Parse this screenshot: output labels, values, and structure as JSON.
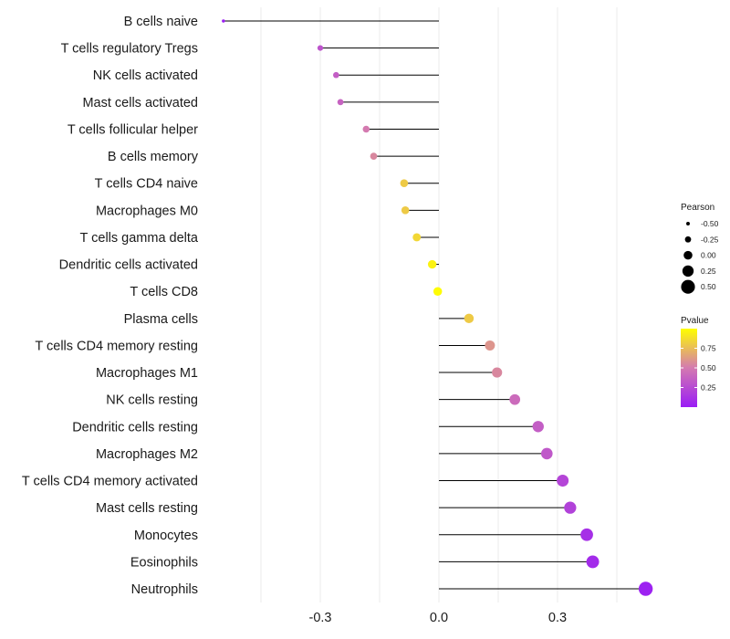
{
  "chart_data": {
    "type": "lollipop",
    "title": "",
    "xlabel": "",
    "ylabel": "",
    "xlim": [
      -0.6,
      0.55
    ],
    "x_ticks": [
      -0.3,
      0.0,
      0.3
    ],
    "x_tick_labels": [
      "-0.3",
      "0.0",
      "0.3"
    ],
    "grid": true,
    "categories": [
      "B cells naive",
      "T cells regulatory  Tregs",
      "NK cells activated",
      "Mast cells activated",
      "T cells follicular helper",
      "B cells memory",
      "T cells CD4 naive",
      "Macrophages M0",
      "T cells gamma delta",
      "Dendritic cells activated",
      "T cells CD8",
      "Plasma cells",
      "T cells CD4 memory resting",
      "Macrophages M1",
      "NK cells resting",
      "Dendritic cells resting",
      "Macrophages M2",
      "T cells CD4 memory activated",
      "Mast cells resting",
      "Monocytes",
      "Eosinophils",
      "Neutrophils"
    ],
    "pearson": [
      -0.545,
      -0.3,
      -0.26,
      -0.249,
      -0.184,
      -0.165,
      -0.088,
      -0.085,
      -0.056,
      -0.017,
      -0.003,
      0.076,
      0.129,
      0.147,
      0.192,
      0.251,
      0.273,
      0.313,
      0.332,
      0.374,
      0.389,
      0.523
    ],
    "pvalue": [
      0.01,
      0.3,
      0.35,
      0.38,
      0.5,
      0.55,
      0.8,
      0.8,
      0.85,
      0.95,
      0.99,
      0.8,
      0.6,
      0.55,
      0.42,
      0.35,
      0.32,
      0.22,
      0.2,
      0.1,
      0.08,
      0.03
    ],
    "legend": {
      "size_title": "Pearson",
      "size_labels": [
        "-0.50",
        "-0.25",
        "0.00",
        "0.25",
        "0.50"
      ],
      "size_values": [
        -0.5,
        -0.25,
        0.0,
        0.25,
        0.5
      ],
      "color_title": "Pvalue",
      "color_labels": [
        "0.75",
        "0.50",
        "0.25"
      ],
      "color_values": [
        0.75,
        0.5,
        0.25
      ],
      "color_range": [
        0.0,
        1.0
      ],
      "placement": "right"
    },
    "colors": {
      "low": "#9A1CF5",
      "mid": "#D47AB0",
      "high": "#FFFF00",
      "stem": "#000000",
      "grid": "#ebebeb"
    }
  }
}
